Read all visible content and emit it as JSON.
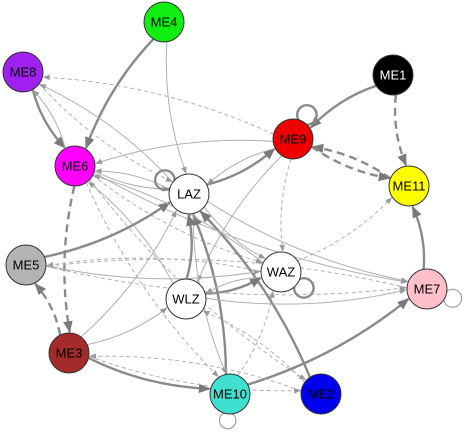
{
  "nodes": [
    {
      "id": "ME4",
      "label": "ME4",
      "color": "#11ee11",
      "text_color": "#000000"
    },
    {
      "id": "ME8",
      "label": "ME8",
      "color": "#a020f0",
      "text_color": "#000000"
    },
    {
      "id": "ME6",
      "label": "ME6",
      "color": "#ff00ff",
      "text_color": "#000000"
    },
    {
      "id": "ME1",
      "label": "ME1",
      "color": "#000000",
      "text_color": "#ffffff"
    },
    {
      "id": "ME9",
      "label": "ME9",
      "color": "#ee0000",
      "text_color": "#000000"
    },
    {
      "id": "ME11",
      "label": "ME11",
      "color": "#ffff00",
      "text_color": "#000000"
    },
    {
      "id": "LAZ",
      "label": "LAZ",
      "color": "#ffffff",
      "text_color": "#000000"
    },
    {
      "id": "ME5",
      "label": "ME5",
      "color": "#b3b3b3",
      "text_color": "#000000"
    },
    {
      "id": "WAZ",
      "label": "WAZ",
      "color": "#ffffff",
      "text_color": "#000000"
    },
    {
      "id": "ME7",
      "label": "ME7",
      "color": "#ffc0cb",
      "text_color": "#000000"
    },
    {
      "id": "WLZ",
      "label": "WLZ",
      "color": "#ffffff",
      "text_color": "#000000"
    },
    {
      "id": "ME3",
      "label": "ME3",
      "color": "#a52a2a",
      "text_color": "#000000"
    },
    {
      "id": "ME10",
      "label": "ME10",
      "color": "#40e0d0",
      "text_color": "#000000"
    },
    {
      "id": "ME2",
      "label": "ME2",
      "color": "#0000ee",
      "text_color": "#000000"
    }
  ],
  "edges": [
    {
      "from": "ME4",
      "to": "ME6",
      "style": "solid",
      "strength": 2
    },
    {
      "from": "ME4",
      "to": "LAZ",
      "style": "solid",
      "strength": 1
    },
    {
      "from": "ME8",
      "to": "ME6",
      "style": "solid",
      "strength": 2
    },
    {
      "from": "ME6",
      "to": "ME8",
      "style": "solid",
      "strength": 1
    },
    {
      "from": "ME8",
      "to": "LAZ",
      "style": "dashed",
      "strength": 1
    },
    {
      "from": "ME9",
      "to": "ME8",
      "style": "dashed",
      "strength": 1
    },
    {
      "from": "LAZ",
      "to": "ME8",
      "style": "solid",
      "strength": 1
    },
    {
      "from": "ME9",
      "to": "ME6",
      "style": "solid",
      "strength": 1
    },
    {
      "from": "LAZ",
      "to": "ME6",
      "style": "solid",
      "strength": 1
    },
    {
      "from": "ME6",
      "to": "LAZ",
      "style": "solid",
      "strength": 1
    },
    {
      "from": "WLZ",
      "to": "ME6",
      "style": "solid",
      "strength": 1
    },
    {
      "from": "ME6",
      "to": "WAZ",
      "style": "dashed",
      "strength": 1
    },
    {
      "from": "ME6",
      "to": "ME2",
      "style": "dashed",
      "strength": 1
    },
    {
      "from": "ME6",
      "to": "ME3",
      "style": "dashed",
      "strength": 2
    },
    {
      "from": "ME6",
      "to": "ME7",
      "style": "solid",
      "strength": 1
    },
    {
      "from": "ME6",
      "to": "ME10",
      "style": "dashed",
      "strength": 1
    },
    {
      "from": "ME1",
      "to": "ME9",
      "style": "solid",
      "strength": 2
    },
    {
      "from": "ME1",
      "to": "ME11",
      "style": "dashed",
      "strength": 2
    },
    {
      "from": "ME11",
      "to": "ME9",
      "style": "dashed",
      "strength": 2
    },
    {
      "from": "ME9",
      "to": "ME11",
      "style": "dashed",
      "strength": 2
    },
    {
      "from": "LAZ",
      "to": "ME9",
      "style": "solid",
      "strength": 2
    },
    {
      "from": "ME9",
      "to": "LAZ",
      "style": "solid",
      "strength": 1
    },
    {
      "from": "ME9",
      "to": "WLZ",
      "style": "solid",
      "strength": 1
    },
    {
      "from": "ME9",
      "to": "WAZ",
      "style": "dashed",
      "strength": 1
    },
    {
      "from": "WAZ",
      "to": "ME11",
      "style": "dashed",
      "strength": 1
    },
    {
      "from": "ME7",
      "to": "ME11",
      "style": "solid",
      "strength": 2
    },
    {
      "from": "LAZ",
      "to": "ME7",
      "style": "solid",
      "strength": 1
    },
    {
      "from": "WAZ",
      "to": "ME5",
      "style": "dashed",
      "strength": 1
    },
    {
      "from": "ME7",
      "to": "ME5",
      "style": "dashed",
      "strength": 1
    },
    {
      "from": "ME5",
      "to": "LAZ",
      "style": "solid",
      "strength": 2
    },
    {
      "from": "ME3",
      "to": "ME5",
      "style": "dashed",
      "strength": 2
    },
    {
      "from": "ME3",
      "to": "ME10",
      "style": "solid",
      "strength": 2
    },
    {
      "from": "ME3",
      "to": "WLZ",
      "style": "solid",
      "strength": 1
    },
    {
      "from": "ME3",
      "to": "LAZ",
      "style": "solid",
      "strength": 1
    },
    {
      "from": "ME10",
      "to": "LAZ",
      "style": "solid",
      "strength": 2
    },
    {
      "from": "ME10",
      "to": "ME7",
      "style": "solid",
      "strength": 2
    },
    {
      "from": "ME10",
      "to": "WAZ",
      "style": "dashed",
      "strength": 1
    },
    {
      "from": "LAZ",
      "to": "ME10",
      "style": "solid",
      "strength": 1
    },
    {
      "from": "ME2",
      "to": "LAZ",
      "style": "solid",
      "strength": 2
    },
    {
      "from": "ME2",
      "to": "WLZ",
      "style": "dashed",
      "strength": 1
    },
    {
      "from": "ME2",
      "to": "ME3",
      "style": "dashed",
      "strength": 1
    },
    {
      "from": "WLZ",
      "to": "LAZ",
      "style": "solid",
      "strength": 2
    },
    {
      "from": "WLZ",
      "to": "WAZ",
      "style": "solid",
      "strength": 2
    },
    {
      "from": "WAZ",
      "to": "WLZ",
      "style": "solid",
      "strength": 1
    },
    {
      "from": "LAZ",
      "to": "WAZ",
      "style": "solid",
      "strength": 1
    },
    {
      "from": "WAZ",
      "to": "ME6",
      "style": "solid",
      "strength": 1
    },
    {
      "from": "WLZ",
      "to": "ME7",
      "style": "solid",
      "strength": 1
    },
    {
      "from": "ME5",
      "to": "WAZ",
      "style": "solid",
      "strength": 1
    },
    {
      "from": "ME5",
      "to": "ME7",
      "style": "dashed",
      "strength": 1
    },
    {
      "from": "ME3",
      "to": "ME2",
      "style": "dashed",
      "strength": 1
    }
  ],
  "self_loops": [
    {
      "node": "ME9",
      "style": "solid",
      "strength": 2
    },
    {
      "node": "LAZ",
      "style": "solid",
      "strength": 2
    },
    {
      "node": "WAZ",
      "style": "solid",
      "strength": 2
    },
    {
      "node": "ME7",
      "style": "solid",
      "strength": 1
    },
    {
      "node": "ME10",
      "style": "solid",
      "strength": 1
    }
  ]
}
